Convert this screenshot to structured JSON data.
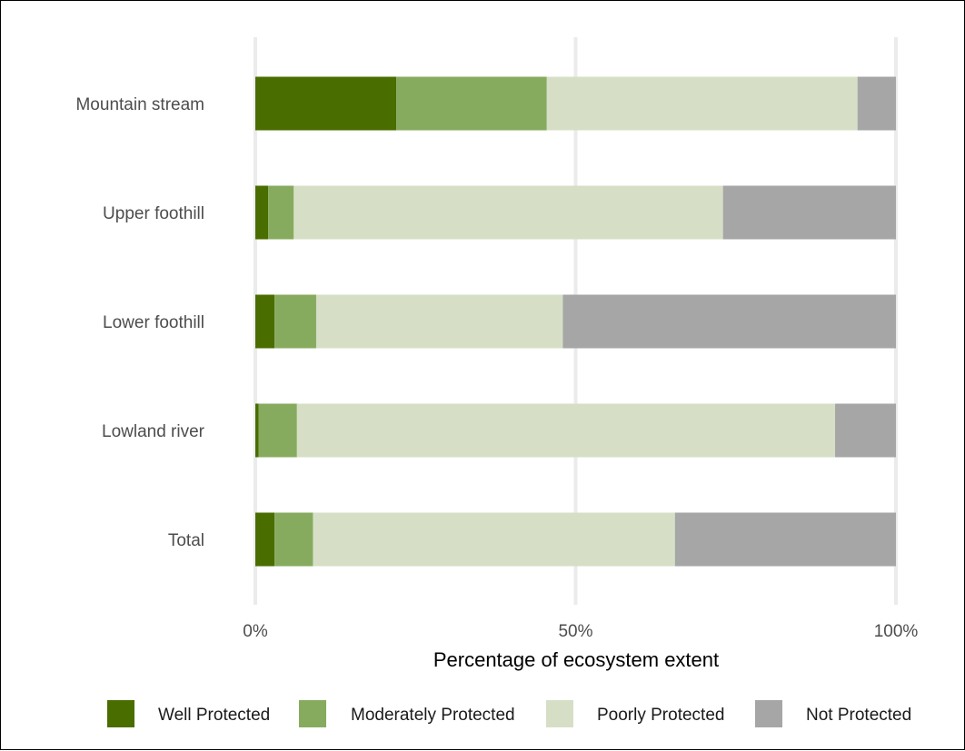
{
  "chart_data": {
    "type": "bar",
    "orientation": "horizontal",
    "stacked": true,
    "normalized": true,
    "categories": [
      "Mountain stream",
      "Upper foothill",
      "Lower foothill",
      "Lowland river",
      "Total"
    ],
    "series": [
      {
        "name": "Well Protected",
        "color": "#4a6d00",
        "values": [
          22,
          2,
          3,
          0.5,
          3
        ]
      },
      {
        "name": "Moderately Protected",
        "color": "#87ab5e",
        "values": [
          23.5,
          4,
          6.5,
          6,
          6
        ]
      },
      {
        "name": "Poorly Protected",
        "color": "#d6dfc6",
        "values": [
          48.5,
          67,
          38.5,
          84,
          56.5
        ]
      },
      {
        "name": "Not Protected",
        "color": "#a6a6a6",
        "values": [
          6,
          27,
          52,
          9.5,
          34.5
        ]
      }
    ],
    "xlabel": "Percentage of ecosystem extent",
    "ylabel": "",
    "xlim": [
      0,
      100
    ],
    "xticks": [
      0,
      50,
      100
    ],
    "xtick_labels": [
      "0%",
      "50%",
      "100%"
    ],
    "grid": true,
    "legend_position": "bottom"
  }
}
